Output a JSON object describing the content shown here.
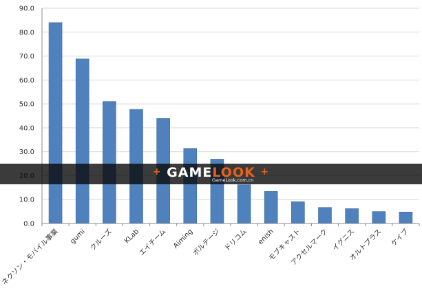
{
  "chart_data": {
    "type": "bar",
    "title": "",
    "xlabel": "",
    "ylabel": "",
    "ylim": [
      0,
      90
    ],
    "yticks": [
      "0.0",
      "10.0",
      "20.0",
      "30.0",
      "40.0",
      "50.0",
      "60.0",
      "70.0",
      "80.0",
      "90.0"
    ],
    "grid": true,
    "legend": "none",
    "bar_color": "#4f81bd",
    "categories": [
      "ネクソン・モバイル事業",
      "gumi",
      "クルーズ",
      "KLab",
      "エイチーム",
      "Aiming",
      "ボルテージ",
      "ドリコム",
      "enish",
      "モブキャスト",
      "アクセルマーク",
      "イグニス",
      "オルトプラス",
      "ケイブ"
    ],
    "values": [
      84.0,
      68.8,
      51.0,
      47.7,
      43.9,
      31.4,
      26.9,
      16.2,
      13.4,
      9.1,
      6.7,
      6.2,
      5.0,
      4.8
    ]
  },
  "watermark": {
    "logo_left": "GAME",
    "logo_right": "LOOK",
    "plus_left": "+",
    "plus_right": "+",
    "url": "GameLook.com.cn"
  }
}
